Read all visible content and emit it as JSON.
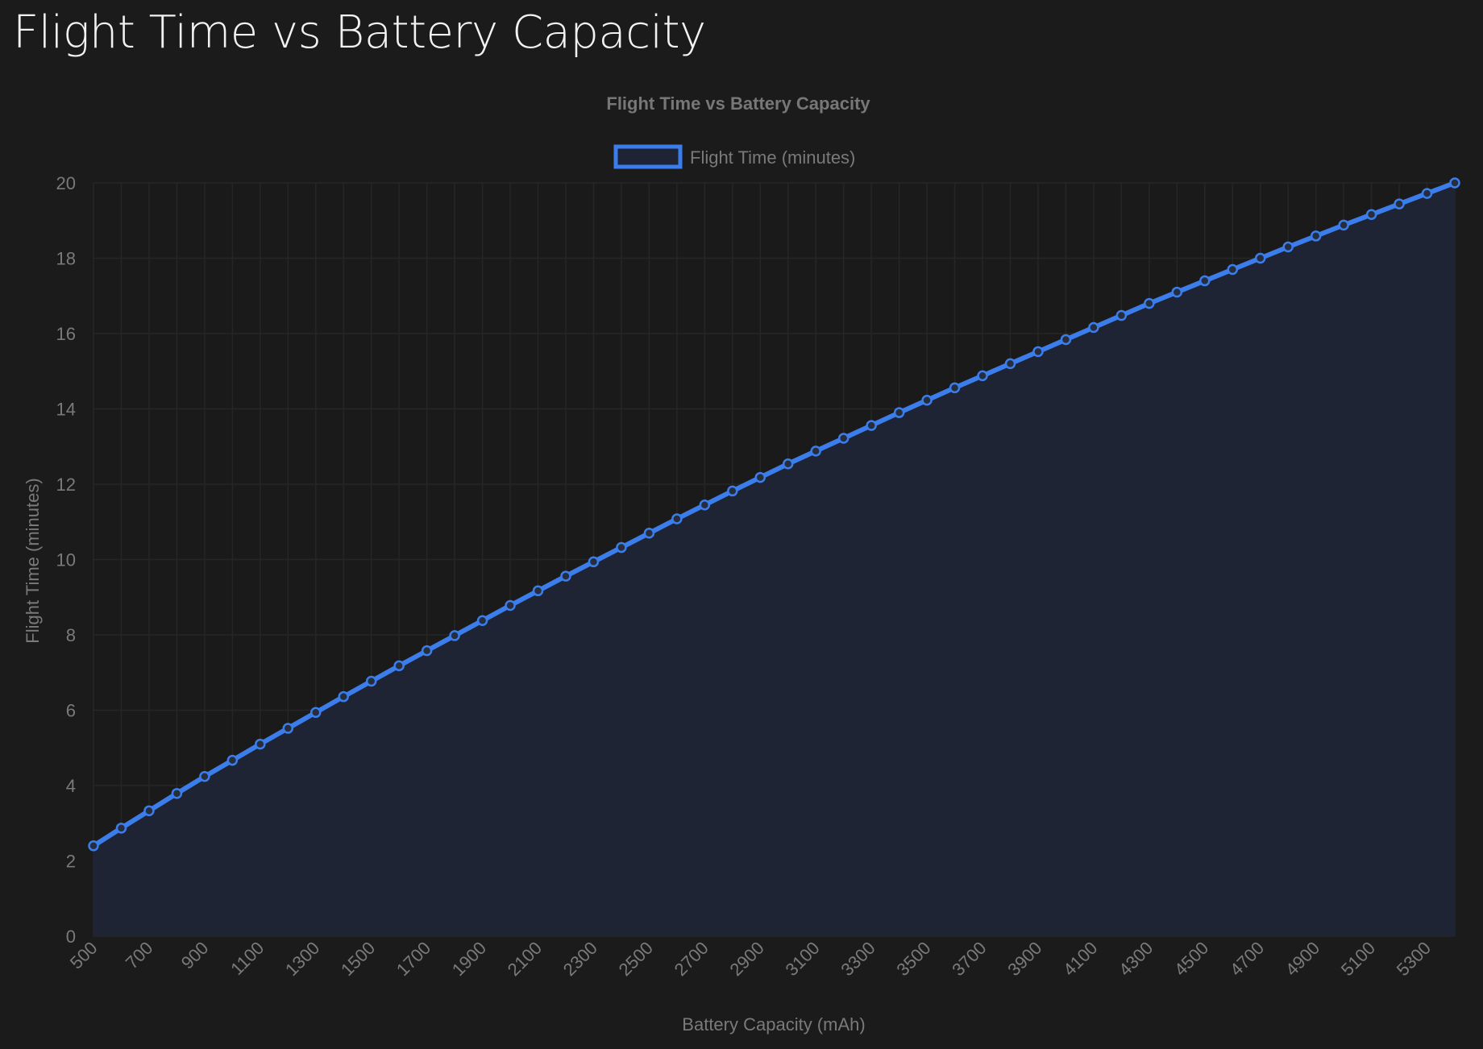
{
  "page": {
    "title": "Flight Time vs Battery Capacity"
  },
  "chart_data": {
    "type": "area",
    "title": "Flight Time vs Battery Capacity",
    "xlabel": "Battery Capacity (mAh)",
    "ylabel": "Flight Time (minutes)",
    "ylim": [
      0,
      20
    ],
    "yticks": [
      0,
      2,
      4,
      6,
      8,
      10,
      12,
      14,
      16,
      18,
      20
    ],
    "xtick_labels": [
      "500",
      "700",
      "900",
      "1100",
      "1300",
      "1500",
      "1700",
      "1900",
      "2100",
      "2300",
      "2500",
      "2700",
      "2900",
      "3100",
      "3300",
      "3500",
      "3700",
      "3900",
      "4100",
      "4300",
      "4500",
      "4700",
      "4900",
      "5100",
      "5300"
    ],
    "grid": true,
    "legend": "top-center",
    "colors": {
      "line": "#3b7deb",
      "fill": "#1e2433",
      "background": "#1b1b1b",
      "plot_background": "#1a1a1a"
    },
    "x": [
      500,
      600,
      700,
      800,
      900,
      1000,
      1100,
      1200,
      1300,
      1400,
      1500,
      1600,
      1700,
      1800,
      1900,
      2000,
      2100,
      2200,
      2300,
      2400,
      2500,
      2600,
      2700,
      2800,
      2900,
      3000,
      3100,
      3200,
      3300,
      3400,
      3500,
      3600,
      3700,
      3800,
      3900,
      4000,
      4100,
      4200,
      4300,
      4400,
      4500,
      4600,
      4700,
      4800,
      4900,
      5000,
      5100,
      5200,
      5300,
      5400
    ],
    "series": [
      {
        "name": "Flight Time (minutes)",
        "values": [
          2.4,
          2.87,
          3.33,
          3.79,
          4.24,
          4.67,
          5.1,
          5.52,
          5.94,
          6.36,
          6.77,
          7.18,
          7.58,
          7.98,
          8.38,
          8.78,
          9.17,
          9.56,
          9.94,
          10.32,
          10.7,
          11.08,
          11.45,
          11.82,
          12.18,
          12.54,
          12.88,
          13.22,
          13.56,
          13.9,
          14.23,
          14.56,
          14.88,
          15.2,
          15.52,
          15.84,
          16.16,
          16.48,
          16.8,
          17.1,
          17.4,
          17.7,
          18.0,
          18.3,
          18.59,
          18.88,
          19.16,
          19.44,
          19.72,
          20.0
        ]
      }
    ]
  }
}
